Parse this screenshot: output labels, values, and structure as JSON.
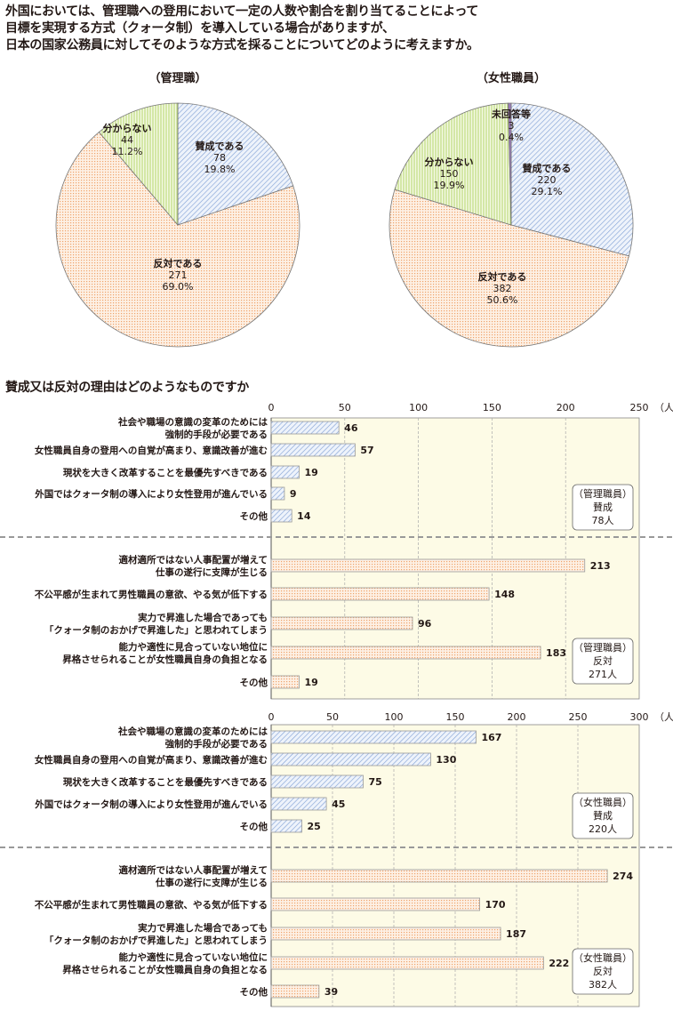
{
  "question": "外国においては、管理職への登用において一定の人数や割合を割り当てることによって\n目標を実現する方式（クォータ制）を導入している場合がありますが、\n日本の国家公務員に対してそのような方式を採ることについてどのように考えますか。",
  "subquestion": "賛成又は反対の理由はどのようなものですか",
  "colors": {
    "agree": "#7f9fd4",
    "oppose": "#f0a46a",
    "unknown": "#b5d56a",
    "noanswer": "#9b7bb8",
    "plot_bg": "#fdfbe6"
  },
  "chart_data": [
    {
      "type": "pie",
      "title": "（管理職）",
      "slices": [
        {
          "label": "賛成である",
          "count": "78",
          "pct": "19.8%",
          "value": 19.8,
          "kind": "agree"
        },
        {
          "label": "反対である",
          "count": "271",
          "pct": "69.0%",
          "value": 69.0,
          "kind": "oppose"
        },
        {
          "label": "分からない",
          "count": "44",
          "pct": "11.2%",
          "value": 11.2,
          "kind": "unknown"
        }
      ]
    },
    {
      "type": "pie",
      "title": "（女性職員）",
      "slices": [
        {
          "label": "賛成である",
          "count": "220",
          "pct": "29.1%",
          "value": 29.1,
          "kind": "agree"
        },
        {
          "label": "反対である",
          "count": "382",
          "pct": "50.6%",
          "value": 50.6,
          "kind": "oppose"
        },
        {
          "label": "分からない",
          "count": "150",
          "pct": "19.9%",
          "value": 19.9,
          "kind": "unknown"
        },
        {
          "label": "未回答等",
          "count": "3",
          "pct": "0.4%",
          "value": 0.4,
          "kind": "noanswer"
        }
      ]
    },
    {
      "type": "bar",
      "orientation": "horizontal",
      "xlim": [
        0,
        250
      ],
      "ticks": [
        "0",
        "50",
        "100",
        "150",
        "200",
        "250"
      ],
      "unit": "（人）",
      "grid": true,
      "groups": [
        {
          "kind": "agree",
          "legend": [
            "（管理職員）",
            "賛成",
            "78人"
          ],
          "items": [
            {
              "label": [
                "社会や職場の意識の変革のためには",
                "強制的手段が必要である"
              ],
              "value": 46
            },
            {
              "label": [
                "女性職員自身の登用への自覚が高まり、意識改善が進む"
              ],
              "value": 57
            },
            {
              "label": [
                "現状を大きく改革することを最優先すべきである"
              ],
              "value": 19
            },
            {
              "label": [
                "外国ではクォータ制の導入により女性登用が進んでいる"
              ],
              "value": 9
            },
            {
              "label": [
                "その他"
              ],
              "value": 14
            }
          ]
        },
        {
          "kind": "oppose",
          "legend": [
            "（管理職員）",
            "反対",
            "271人"
          ],
          "items": [
            {
              "label": [
                "適材適所ではない人事配置が増えて",
                "仕事の遂行に支障が生じる"
              ],
              "value": 213
            },
            {
              "label": [
                "不公平感が生まれて男性職員の意欲、やる気が低下する"
              ],
              "value": 148
            },
            {
              "label": [
                "実力で昇進した場合であっても",
                "「クォータ制のおかげで昇進した」と思われてしまう"
              ],
              "value": 96
            },
            {
              "label": [
                "能力や適性に見合っていない地位に",
                "昇格させられることが女性職員自身の負担となる"
              ],
              "value": 183
            },
            {
              "label": [
                "その他"
              ],
              "value": 19
            }
          ]
        }
      ]
    },
    {
      "type": "bar",
      "orientation": "horizontal",
      "xlim": [
        0,
        300
      ],
      "ticks": [
        "0",
        "50",
        "100",
        "150",
        "200",
        "250",
        "300"
      ],
      "unit": "（人）",
      "grid": true,
      "groups": [
        {
          "kind": "agree",
          "legend": [
            "（女性職員）",
            "賛成",
            "220人"
          ],
          "items": [
            {
              "label": [
                "社会や職場の意識の変革のためには",
                "強制的手段が必要である"
              ],
              "value": 167
            },
            {
              "label": [
                "女性職員自身の登用への自覚が高まり、意識改善が進む"
              ],
              "value": 130
            },
            {
              "label": [
                "現状を大きく改革することを最優先すべきである"
              ],
              "value": 75
            },
            {
              "label": [
                "外国ではクォータ制の導入により女性登用が進んでいる"
              ],
              "value": 45
            },
            {
              "label": [
                "その他"
              ],
              "value": 25
            }
          ]
        },
        {
          "kind": "oppose",
          "legend": [
            "（女性職員）",
            "反対",
            "382人"
          ],
          "items": [
            {
              "label": [
                "適材適所ではない人事配置が増えて",
                "仕事の遂行に支障が生じる"
              ],
              "value": 274
            },
            {
              "label": [
                "不公平感が生まれて男性職員の意欲、やる気が低下する"
              ],
              "value": 170
            },
            {
              "label": [
                "実力で昇進した場合であっても",
                "「クォータ制のおかげで昇進した」と思われてしまう"
              ],
              "value": 187
            },
            {
              "label": [
                "能力や適性に見合っていない地位に",
                "昇格させられることが女性職員自身の負担となる"
              ],
              "value": 222
            },
            {
              "label": [
                "その他"
              ],
              "value": 39
            }
          ]
        }
      ]
    }
  ]
}
